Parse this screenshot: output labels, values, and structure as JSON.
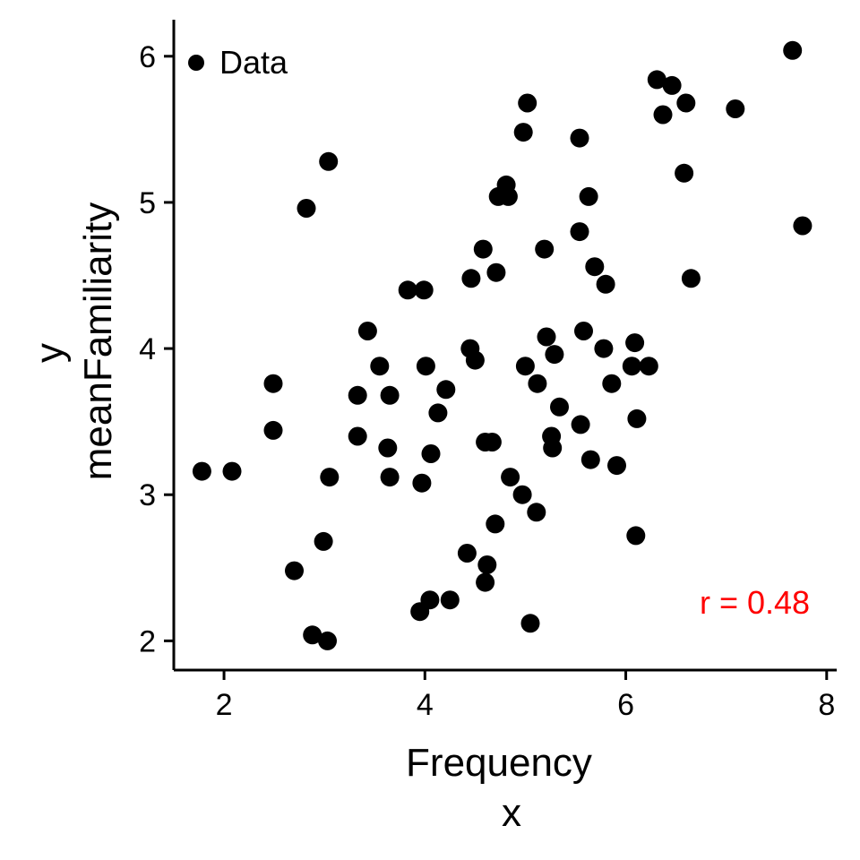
{
  "chart_data": {
    "type": "scatter",
    "xlabel": "Frequency",
    "xlabel_var": "x",
    "ylabel": "meanFamiliarity",
    "ylabel_var": "y",
    "xlim": [
      1.5,
      8.1
    ],
    "ylim": [
      1.8,
      6.25
    ],
    "x_ticks": [
      2,
      4,
      6,
      8
    ],
    "y_ticks": [
      2,
      3,
      4,
      5,
      6
    ],
    "grid": false,
    "legend": {
      "position": "top-left",
      "entries": [
        "Data"
      ]
    },
    "annotation": {
      "text": "r = 0.48",
      "color": "#ff0000",
      "position": "bottom-right"
    },
    "point_color": "#000000",
    "series": [
      {
        "name": "Data",
        "points": [
          [
            1.78,
            3.16
          ],
          [
            2.08,
            3.16
          ],
          [
            2.49,
            3.76
          ],
          [
            2.49,
            3.44
          ],
          [
            2.7,
            2.48
          ],
          [
            2.82,
            4.96
          ],
          [
            2.88,
            2.04
          ],
          [
            2.99,
            2.68
          ],
          [
            3.03,
            2.0
          ],
          [
            3.04,
            5.28
          ],
          [
            3.05,
            3.12
          ],
          [
            3.33,
            3.68
          ],
          [
            3.33,
            3.4
          ],
          [
            3.43,
            4.12
          ],
          [
            3.55,
            3.88
          ],
          [
            3.63,
            3.32
          ],
          [
            3.65,
            3.68
          ],
          [
            3.65,
            3.12
          ],
          [
            3.83,
            4.4
          ],
          [
            3.95,
            2.2
          ],
          [
            3.97,
            3.08
          ],
          [
            3.99,
            4.4
          ],
          [
            4.01,
            3.88
          ],
          [
            4.05,
            2.28
          ],
          [
            4.06,
            3.28
          ],
          [
            4.13,
            3.56
          ],
          [
            4.21,
            3.72
          ],
          [
            4.25,
            2.28
          ],
          [
            4.42,
            2.6
          ],
          [
            4.45,
            4.0
          ],
          [
            4.46,
            4.48
          ],
          [
            4.5,
            3.92
          ],
          [
            4.58,
            4.68
          ],
          [
            4.6,
            3.36
          ],
          [
            4.6,
            2.4
          ],
          [
            4.62,
            2.52
          ],
          [
            4.67,
            3.36
          ],
          [
            4.7,
            2.8
          ],
          [
            4.71,
            4.52
          ],
          [
            4.73,
            5.04
          ],
          [
            4.81,
            5.12
          ],
          [
            4.83,
            5.04
          ],
          [
            4.85,
            3.12
          ],
          [
            4.97,
            3.0
          ],
          [
            4.98,
            5.48
          ],
          [
            5.0,
            3.88
          ],
          [
            5.02,
            5.68
          ],
          [
            5.05,
            2.12
          ],
          [
            5.11,
            2.88
          ],
          [
            5.12,
            3.76
          ],
          [
            5.19,
            4.68
          ],
          [
            5.21,
            4.08
          ],
          [
            5.26,
            3.4
          ],
          [
            5.27,
            3.32
          ],
          [
            5.29,
            3.96
          ],
          [
            5.34,
            3.6
          ],
          [
            5.54,
            5.44
          ],
          [
            5.54,
            4.8
          ],
          [
            5.55,
            3.48
          ],
          [
            5.58,
            4.12
          ],
          [
            5.63,
            5.04
          ],
          [
            5.65,
            3.24
          ],
          [
            5.69,
            4.56
          ],
          [
            5.78,
            4.0
          ],
          [
            5.8,
            4.44
          ],
          [
            5.86,
            3.76
          ],
          [
            5.91,
            3.2
          ],
          [
            6.06,
            3.88
          ],
          [
            6.09,
            4.04
          ],
          [
            6.1,
            2.72
          ],
          [
            6.11,
            3.52
          ],
          [
            6.23,
            3.88
          ],
          [
            6.31,
            5.84
          ],
          [
            6.37,
            5.6
          ],
          [
            6.46,
            5.8
          ],
          [
            6.58,
            5.2
          ],
          [
            6.6,
            5.68
          ],
          [
            6.65,
            4.48
          ],
          [
            7.09,
            5.64
          ],
          [
            7.66,
            6.04
          ],
          [
            7.76,
            4.84
          ]
        ]
      }
    ]
  }
}
